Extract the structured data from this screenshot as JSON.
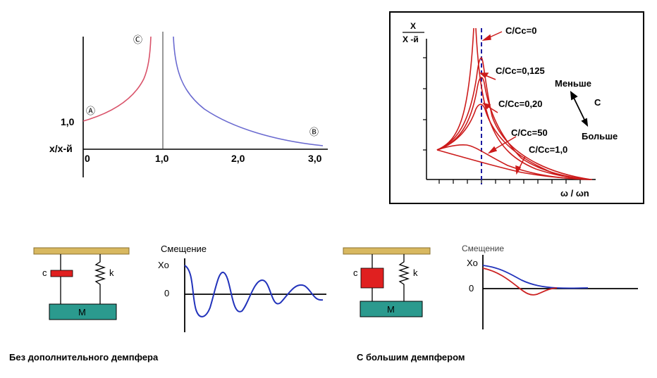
{
  "left_chart": {
    "ylabel": "x/x-й",
    "y_tick": "1,0",
    "x_ticks": [
      "0",
      "1,0",
      "2,0",
      "3,0"
    ],
    "markers": {
      "a": "Ⓐ",
      "b": "Ⓑ",
      "c": "Ⓒ"
    },
    "colors": {
      "left_curve": "#d9536a",
      "right_curve": "#6a6ad0"
    }
  },
  "right_chart": {
    "ylabel_top": "X",
    "ylabel_bottom": "X -й",
    "xlabel": "ω / ωn",
    "curve_labels": [
      "C/Cc=0",
      "C/Cc=0,125",
      "C/Cc=0,20",
      "C/Cc=50",
      "C/Cc=1,0"
    ],
    "direction": {
      "less": "Меньше",
      "c": "C",
      "more": "Больше"
    },
    "colors": {
      "curves": "#cc1b1b",
      "resonance_line": "#1a1aa0"
    }
  },
  "bottom_left": {
    "damper_label": "c",
    "spring_label": "k",
    "mass_label": "M",
    "plot_title": "Смещение",
    "y_label": "Xo",
    "zero_label": "0",
    "caption": "Без дополнительного демпфера",
    "colors": {
      "damper": "#e02020",
      "mass": "#2b9a8e",
      "ceiling": "#d8b860",
      "curve": "#2233bb"
    }
  },
  "bottom_right": {
    "damper_label": "c",
    "spring_label": "k",
    "mass_label": "M",
    "plot_title": "Смещение",
    "y_label": "Xo",
    "zero_label": "0",
    "caption": "С большим демпфером",
    "colors": {
      "damper": "#e02020",
      "mass": "#2b9a8e",
      "ceiling": "#d8b860",
      "blue_curve": "#2233bb",
      "red_curve": "#cc2222"
    }
  }
}
